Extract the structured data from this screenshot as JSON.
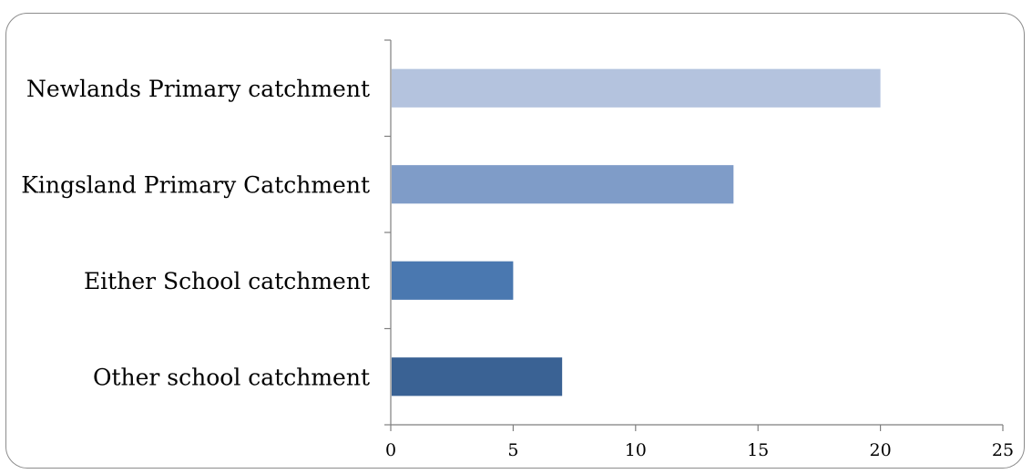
{
  "chart_data": {
    "type": "bar",
    "orientation": "horizontal",
    "title": "",
    "xlabel": "",
    "ylabel": "",
    "categories": [
      "Newlands Primary catchment",
      "Kingsland Primary Catchment",
      "Either School catchment",
      "Other school catchment"
    ],
    "values": [
      20,
      14,
      5,
      7
    ],
    "colors": [
      "#b4c3de",
      "#7f9cc8",
      "#4a78b0",
      "#3a6294"
    ],
    "xlim": [
      0,
      25
    ],
    "xticks": [
      "0",
      "5",
      "10",
      "15",
      "20",
      "25"
    ],
    "grid": false,
    "legend": "none"
  }
}
